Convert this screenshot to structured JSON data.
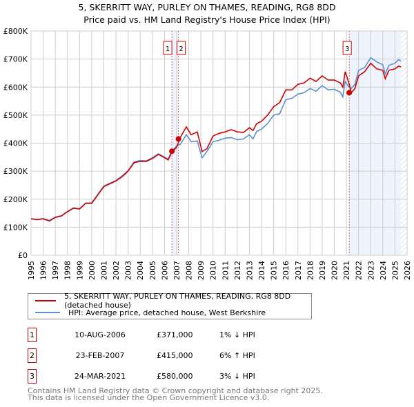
{
  "chart_data": {
    "type": "line",
    "title": "5, SKERRITT WAY, PURLEY ON THAMES, READING, RG8 8DD",
    "subtitle": "Price paid vs. HM Land Registry's House Price Index (HPI)",
    "xlim": [
      1995,
      2026
    ],
    "ylim": [
      0,
      800000
    ],
    "x_ticks": [
      "1995",
      "1996",
      "1997",
      "1998",
      "1999",
      "2000",
      "2001",
      "2002",
      "2003",
      "2004",
      "2005",
      "2006",
      "2007",
      "2008",
      "2009",
      "2010",
      "2011",
      "2012",
      "2013",
      "2014",
      "2015",
      "2016",
      "2017",
      "2018",
      "2019",
      "2020",
      "2021",
      "2022",
      "2023",
      "2024",
      "2025",
      "2026"
    ],
    "y_ticks": [
      {
        "v": 0,
        "label": "£0"
      },
      {
        "v": 100000,
        "label": "£100K"
      },
      {
        "v": 200000,
        "label": "£200K"
      },
      {
        "v": 300000,
        "label": "£300K"
      },
      {
        "v": 400000,
        "label": "£400K"
      },
      {
        "v": 500000,
        "label": "£500K"
      },
      {
        "v": 600000,
        "label": "£600K"
      },
      {
        "v": 700000,
        "label": "£700K"
      },
      {
        "v": 800000,
        "label": "£800K"
      }
    ],
    "grid": true,
    "series": [
      {
        "name": "5, SKERRITT WAY, PURLEY ON THAMES, READING, RG8 8DD (detached house)",
        "color": "#cc0000",
        "x": [
          1995,
          1995.5,
          1996,
          1996.5,
          1997,
          1997.5,
          1998,
          1998.5,
          1999,
          1999.5,
          2000,
          2000.5,
          2001,
          2001.5,
          2002,
          2002.5,
          2003,
          2003.5,
          2004,
          2004.5,
          2005,
          2005.5,
          2006,
          2006.3,
          2006.6,
          2007,
          2007.3,
          2007.8,
          2008.2,
          2008.7,
          2009.1,
          2009.5,
          2010,
          2010.5,
          2011,
          2011.5,
          2012,
          2012.5,
          2013,
          2013.3,
          2013.6,
          2014,
          2014.5,
          2015,
          2015.5,
          2016,
          2016.5,
          2017,
          2017.5,
          2018,
          2018.5,
          2019,
          2019.5,
          2020,
          2020.5,
          2020.7,
          2020.9,
          2021.2,
          2021.4,
          2021.7,
          2022,
          2022.5,
          2023,
          2023.5,
          2024,
          2024.2,
          2024.5,
          2025,
          2025.3,
          2025.5
        ],
        "y": [
          130,
          127,
          130,
          122,
          135,
          140,
          155,
          168,
          165,
          185,
          185,
          215,
          245,
          255,
          265,
          280,
          300,
          330,
          335,
          335,
          345,
          360,
          348,
          340,
          368,
          385,
          420,
          458,
          430,
          440,
          370,
          380,
          425,
          435,
          440,
          448,
          440,
          438,
          455,
          445,
          470,
          478,
          500,
          530,
          545,
          590,
          590,
          610,
          615,
          632,
          620,
          640,
          625,
          625,
          615,
          600,
          655,
          615,
          580,
          595,
          640,
          655,
          685,
          665,
          660,
          630,
          660,
          665,
          675,
          672
        ]
      },
      {
        "name": "HPI: Average price, detached house, West Berkshire",
        "color": "#5b8fd4",
        "x": [
          1995,
          1995.5,
          1996,
          1996.5,
          1997,
          1997.5,
          1998,
          1998.5,
          1999,
          1999.5,
          2000,
          2000.5,
          2001,
          2001.5,
          2002,
          2002.5,
          2003,
          2003.5,
          2004,
          2004.5,
          2005,
          2005.5,
          2006,
          2006.3,
          2006.6,
          2007,
          2007.3,
          2007.8,
          2008.2,
          2008.7,
          2009.1,
          2009.5,
          2010,
          2010.5,
          2011,
          2011.5,
          2012,
          2012.5,
          2013,
          2013.3,
          2013.6,
          2014,
          2014.5,
          2015,
          2015.5,
          2016,
          2016.5,
          2017,
          2017.5,
          2018,
          2018.5,
          2019,
          2019.5,
          2020,
          2020.5,
          2020.7,
          2020.9,
          2021.2,
          2021.4,
          2021.7,
          2022,
          2022.5,
          2023,
          2023.5,
          2024,
          2024.2,
          2024.5,
          2025,
          2025.3,
          2025.5
        ],
        "y": [
          130,
          128,
          131,
          124,
          136,
          141,
          156,
          169,
          166,
          186,
          187,
          217,
          247,
          257,
          267,
          283,
          302,
          333,
          338,
          337,
          348,
          362,
          350,
          343,
          372,
          390,
          395,
          430,
          405,
          408,
          348,
          370,
          405,
          410,
          418,
          420,
          412,
          415,
          430,
          415,
          442,
          450,
          470,
          500,
          505,
          555,
          560,
          575,
          580,
          595,
          585,
          605,
          590,
          592,
          582,
          565,
          620,
          600,
          595,
          610,
          660,
          670,
          705,
          690,
          680,
          648,
          678,
          685,
          698,
          693
        ]
      }
    ],
    "y_unit": "thousands GBP",
    "sales": [
      {
        "num": "1",
        "x": 2006.61,
        "y": 371,
        "date": "10-AUG-2006",
        "price": "£371,000",
        "hpi": "1% ↓ HPI"
      },
      {
        "num": "2",
        "x": 2007.15,
        "y": 415,
        "date": "23-FEB-2007",
        "price": "£415,000",
        "hpi": "6% ↑ HPI"
      },
      {
        "num": "3",
        "x": 2021.23,
        "y": 580,
        "date": "24-MAR-2021",
        "price": "£580,000",
        "hpi": "3% ↓ HPI"
      }
    ],
    "forecast_start": 2025.5
  },
  "footer": {
    "line1": "Contains HM Land Registry data © Crown copyright and database right 2025.",
    "line2": "This data is licensed under the Open Government Licence v3.0."
  }
}
